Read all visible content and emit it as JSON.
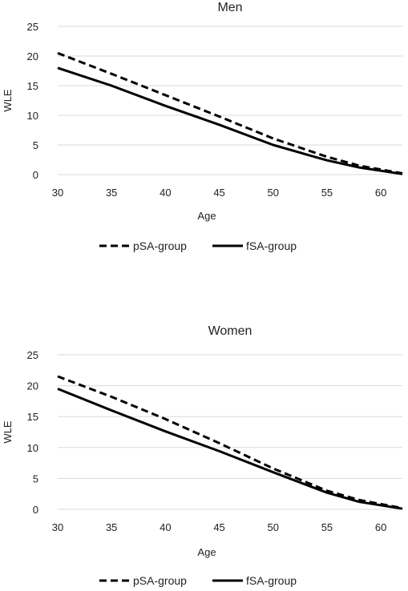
{
  "chart_data": [
    {
      "type": "line",
      "title": "Men",
      "xlabel": "Age",
      "ylabel": "WLE",
      "xlim": [
        30,
        62
      ],
      "ylim": [
        0,
        25
      ],
      "xticks": [
        30,
        35,
        40,
        45,
        50,
        55,
        60
      ],
      "yticks": [
        0,
        5,
        10,
        15,
        20,
        25
      ],
      "grid": "horizontal",
      "legend": "bottom",
      "series": [
        {
          "name": "pSA-group",
          "style": "dashed",
          "color": "#000000",
          "x": [
            30,
            35,
            40,
            45,
            50,
            55,
            58,
            62
          ],
          "y": [
            20.5,
            17.0,
            13.4,
            9.8,
            6.1,
            3.0,
            1.5,
            0.2
          ]
        },
        {
          "name": "fSA-group",
          "style": "solid",
          "color": "#000000",
          "x": [
            30,
            35,
            40,
            45,
            50,
            55,
            58,
            62
          ],
          "y": [
            18.0,
            15.0,
            11.6,
            8.4,
            5.0,
            2.4,
            1.2,
            0.1
          ]
        }
      ]
    },
    {
      "type": "line",
      "title": "Women",
      "xlabel": "Age",
      "ylabel": "WLE",
      "xlim": [
        30,
        62
      ],
      "ylim": [
        0,
        25
      ],
      "xticks": [
        30,
        35,
        40,
        45,
        50,
        55,
        60
      ],
      "yticks": [
        0,
        5,
        10,
        15,
        20,
        25
      ],
      "grid": "horizontal",
      "legend": "bottom",
      "series": [
        {
          "name": "pSA-group",
          "style": "dashed",
          "color": "#000000",
          "x": [
            30,
            35,
            40,
            45,
            50,
            55,
            58,
            62
          ],
          "y": [
            21.5,
            18.2,
            14.6,
            10.7,
            6.6,
            3.0,
            1.5,
            0.2
          ]
        },
        {
          "name": "fSA-group",
          "style": "solid",
          "color": "#000000",
          "x": [
            30,
            35,
            40,
            45,
            50,
            55,
            58,
            62
          ],
          "y": [
            19.5,
            16.0,
            12.6,
            9.4,
            6.0,
            2.7,
            1.2,
            0.1
          ]
        }
      ]
    }
  ]
}
